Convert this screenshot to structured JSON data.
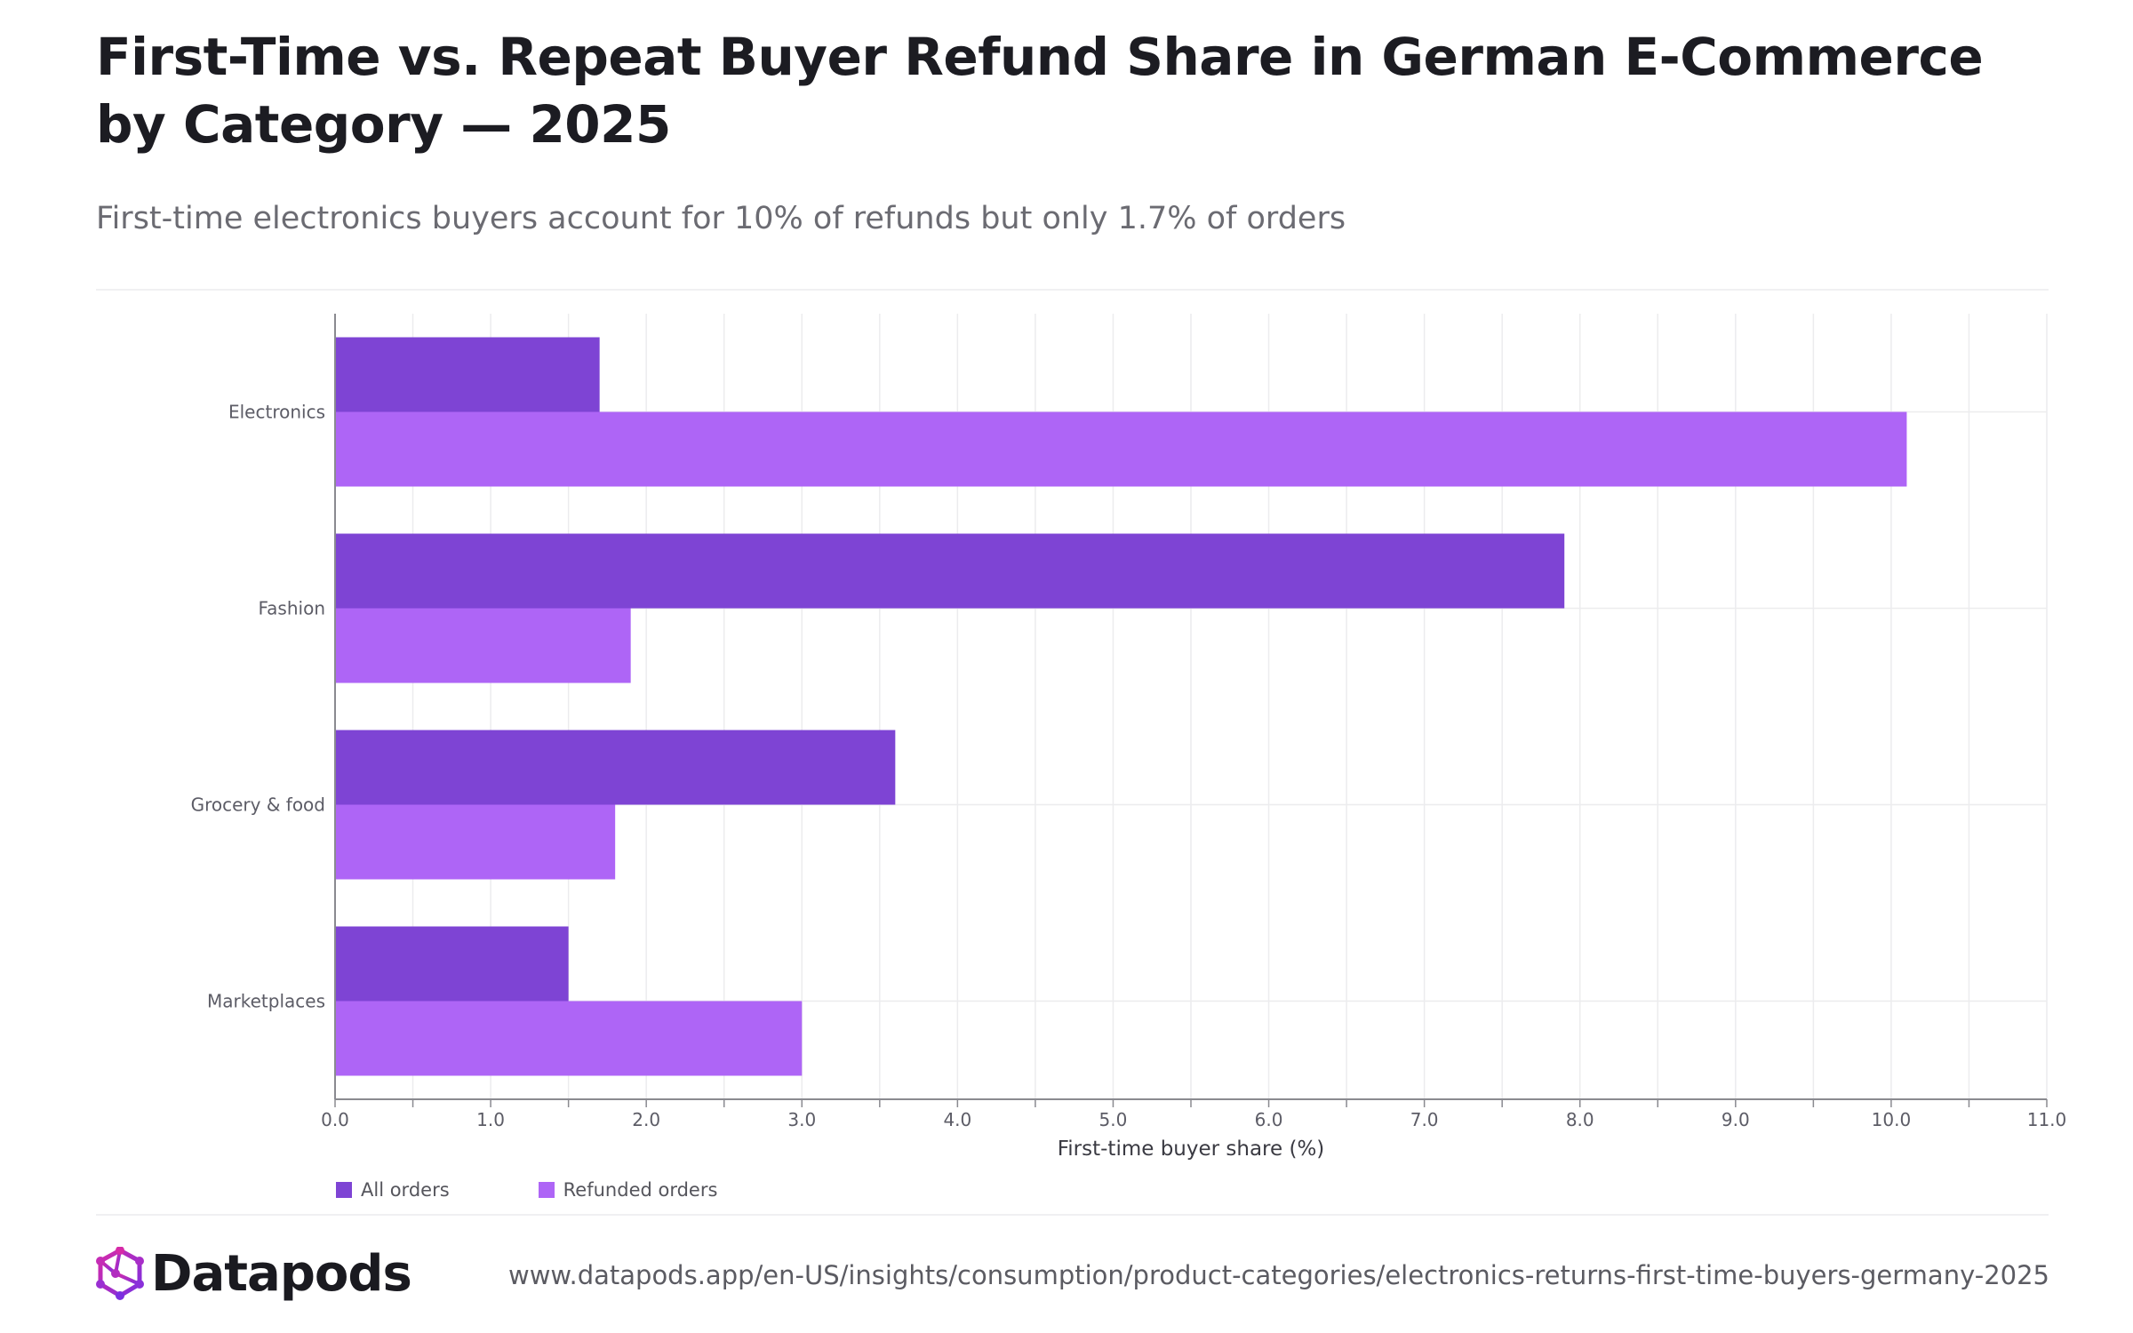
{
  "header": {
    "title": "First-Time vs. Repeat Buyer Refund Share in German E-Commerce by Category — 2025",
    "subtitle": "First-time electronics buyers account for 10% of refunds but only 1.7% of orders"
  },
  "footer": {
    "brand": "Datapods",
    "url": "www.datapods.app/en-US/insights/consumption/product-categories/electronics-returns-first-time-buyers-germany-2025"
  },
  "chart_data": {
    "type": "bar",
    "orientation": "horizontal",
    "categories": [
      "Electronics",
      "Fashion",
      "Grocery & food",
      "Marketplaces"
    ],
    "series": [
      {
        "name": "All orders",
        "values": [
          1.7,
          7.9,
          3.6,
          1.5
        ],
        "color": "#7e44d4"
      },
      {
        "name": "Refunded orders",
        "values": [
          10.1,
          1.9,
          1.8,
          3.0
        ],
        "color": "#ae65f6"
      }
    ],
    "xlabel": "First-time buyer share (%)",
    "ylabel": "",
    "xlim": [
      0,
      11
    ],
    "xticks": [
      "0.0",
      "1.0",
      "2.0",
      "3.0",
      "4.0",
      "5.0",
      "6.0",
      "7.0",
      "8.0",
      "9.0",
      "10.0",
      "11.0"
    ],
    "grid": true,
    "legend": "bottom-left"
  }
}
